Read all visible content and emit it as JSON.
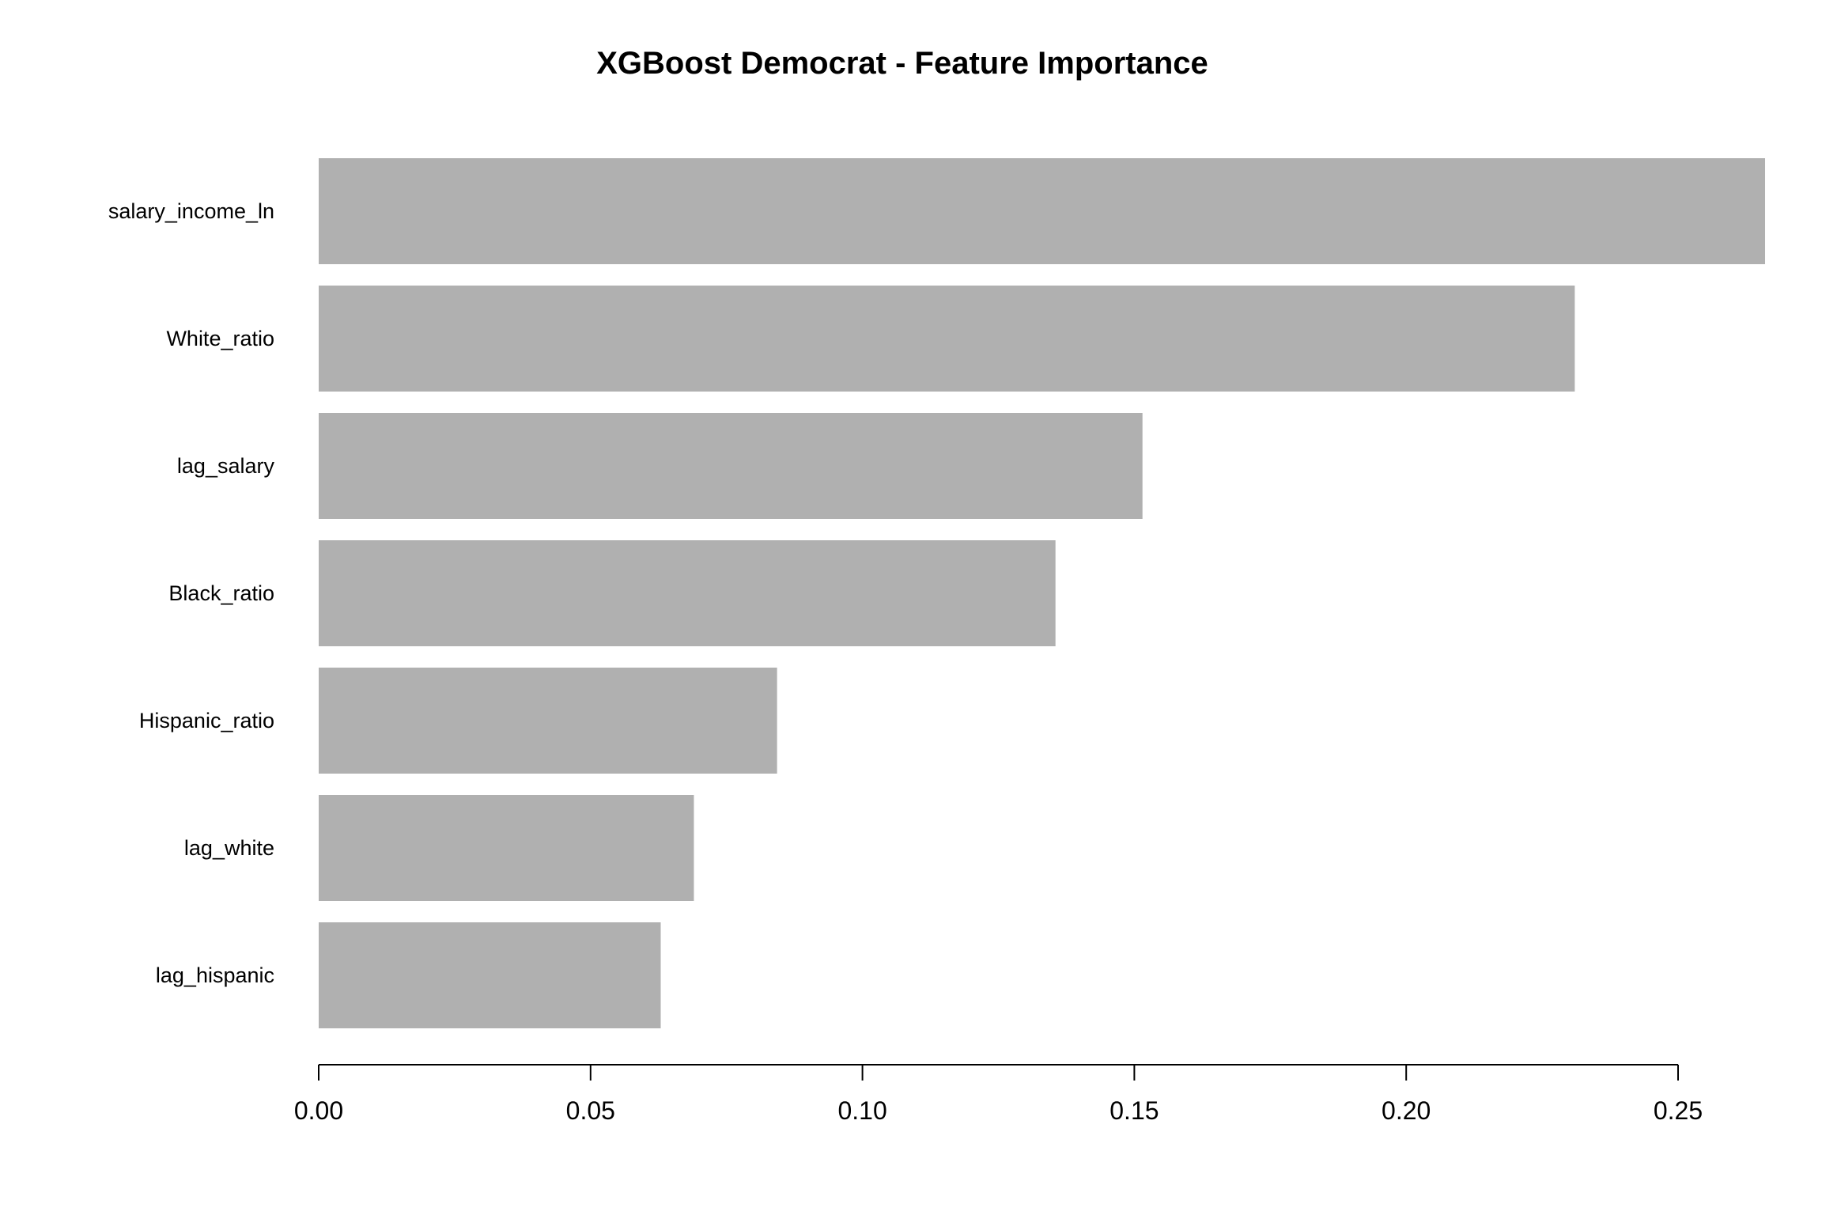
{
  "chart_data": {
    "type": "bar",
    "orientation": "horizontal",
    "title": "XGBoost Democrat - Feature Importance",
    "xlabel": "",
    "ylabel": "",
    "categories": [
      "salary_income_ln",
      "White_ratio",
      "lag_salary",
      "Black_ratio",
      "Hispanic_ratio",
      "lag_white",
      "lag_hispanic"
    ],
    "values": [
      0.266,
      0.231,
      0.1515,
      0.1355,
      0.0843,
      0.069,
      0.0629
    ],
    "xlim": [
      0,
      0.25
    ],
    "x_ticks": [
      0.0,
      0.05,
      0.1,
      0.15,
      0.2,
      0.25
    ],
    "x_tick_labels": [
      "0.00",
      "0.05",
      "0.10",
      "0.15",
      "0.20",
      "0.25"
    ],
    "bar_color": "#b0b0b0",
    "grid": false,
    "legend": "none"
  }
}
